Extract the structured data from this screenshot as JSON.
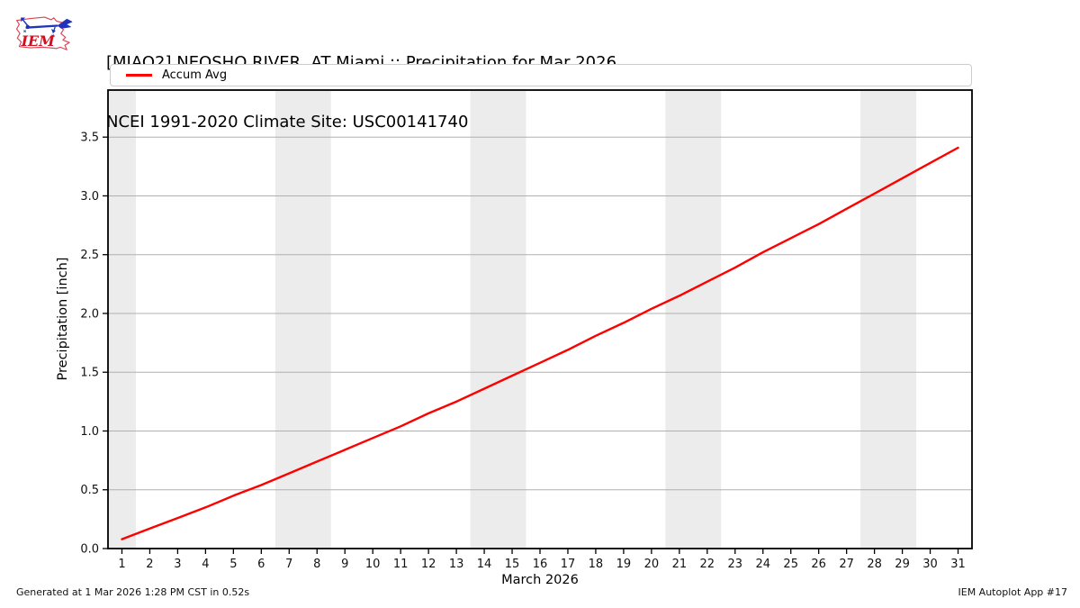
{
  "header": {
    "title_line1": "[MIAO2] NEOSHO RIVER  AT Miami :: Precipitation for Mar 2026",
    "title_line2": "NCEI 1991-2020 Climate Site: USC00141740",
    "logo_text": "IEM"
  },
  "legend": {
    "items": [
      {
        "label": "Accum Avg",
        "color": "#ff0000"
      }
    ]
  },
  "chart_data": {
    "type": "line",
    "xlabel": "March 2026",
    "ylabel": "Precipitation [inch]",
    "x": [
      1,
      2,
      3,
      4,
      5,
      6,
      7,
      8,
      9,
      10,
      11,
      12,
      13,
      14,
      15,
      16,
      17,
      18,
      19,
      20,
      21,
      22,
      23,
      24,
      25,
      26,
      27,
      28,
      29,
      30,
      31
    ],
    "series": [
      {
        "name": "Accum Avg",
        "color": "#ff0000",
        "values": [
          0.08,
          0.17,
          0.26,
          0.35,
          0.45,
          0.54,
          0.64,
          0.74,
          0.84,
          0.94,
          1.04,
          1.15,
          1.25,
          1.36,
          1.47,
          1.58,
          1.69,
          1.81,
          1.92,
          2.04,
          2.15,
          2.27,
          2.39,
          2.52,
          2.64,
          2.76,
          2.89,
          3.02,
          3.15,
          3.28,
          3.41
        ]
      }
    ],
    "xlim": [
      0.5,
      31.5
    ],
    "ylim": [
      0,
      3.9
    ],
    "x_ticks": [
      1,
      2,
      3,
      4,
      5,
      6,
      7,
      8,
      9,
      10,
      11,
      12,
      13,
      14,
      15,
      16,
      17,
      18,
      19,
      20,
      21,
      22,
      23,
      24,
      25,
      26,
      27,
      28,
      29,
      30,
      31
    ],
    "y_ticks": [
      0.0,
      0.5,
      1.0,
      1.5,
      2.0,
      2.5,
      3.0,
      3.5
    ],
    "y_tick_labels": [
      "0.0",
      "0.5",
      "1.0",
      "1.5",
      "2.0",
      "2.5",
      "3.0",
      "3.5"
    ],
    "weekend_bands": [
      [
        0.5,
        1.5
      ],
      [
        6.5,
        8.5
      ],
      [
        13.5,
        15.5
      ],
      [
        20.5,
        22.5
      ],
      [
        27.5,
        29.5
      ]
    ],
    "band_color": "#ececec",
    "grid_color": "#b0b0b0",
    "axis_color": "#000000",
    "grid": true,
    "legend_position": "top"
  },
  "footer": {
    "left": "Generated at 1 Mar 2026 1:28 PM CST in 0.52s",
    "right": "IEM Autoplot App #17"
  }
}
